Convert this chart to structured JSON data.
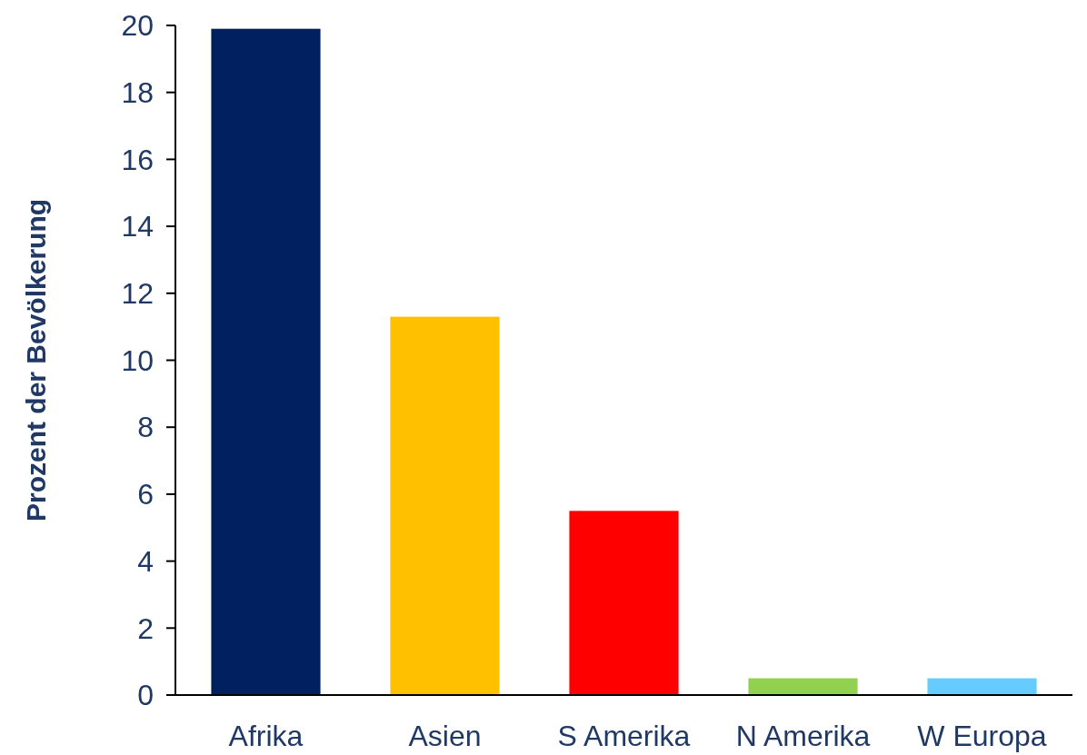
{
  "chart_data": {
    "type": "bar",
    "ylabel": "Prozent der Bevölkerung",
    "categories": [
      "Afrika",
      "Asien",
      "S Amerika",
      "N Amerika",
      "W Europa"
    ],
    "values": [
      19.9,
      11.3,
      5.5,
      0.5,
      0.5
    ],
    "colors": [
      "#002060",
      "#ffc000",
      "#ff0000",
      "#92d050",
      "#66ccff"
    ],
    "ylim": [
      0,
      20
    ],
    "yticks": [
      0,
      2,
      4,
      6,
      8,
      10,
      12,
      14,
      16,
      18,
      20
    ],
    "grid": false
  }
}
